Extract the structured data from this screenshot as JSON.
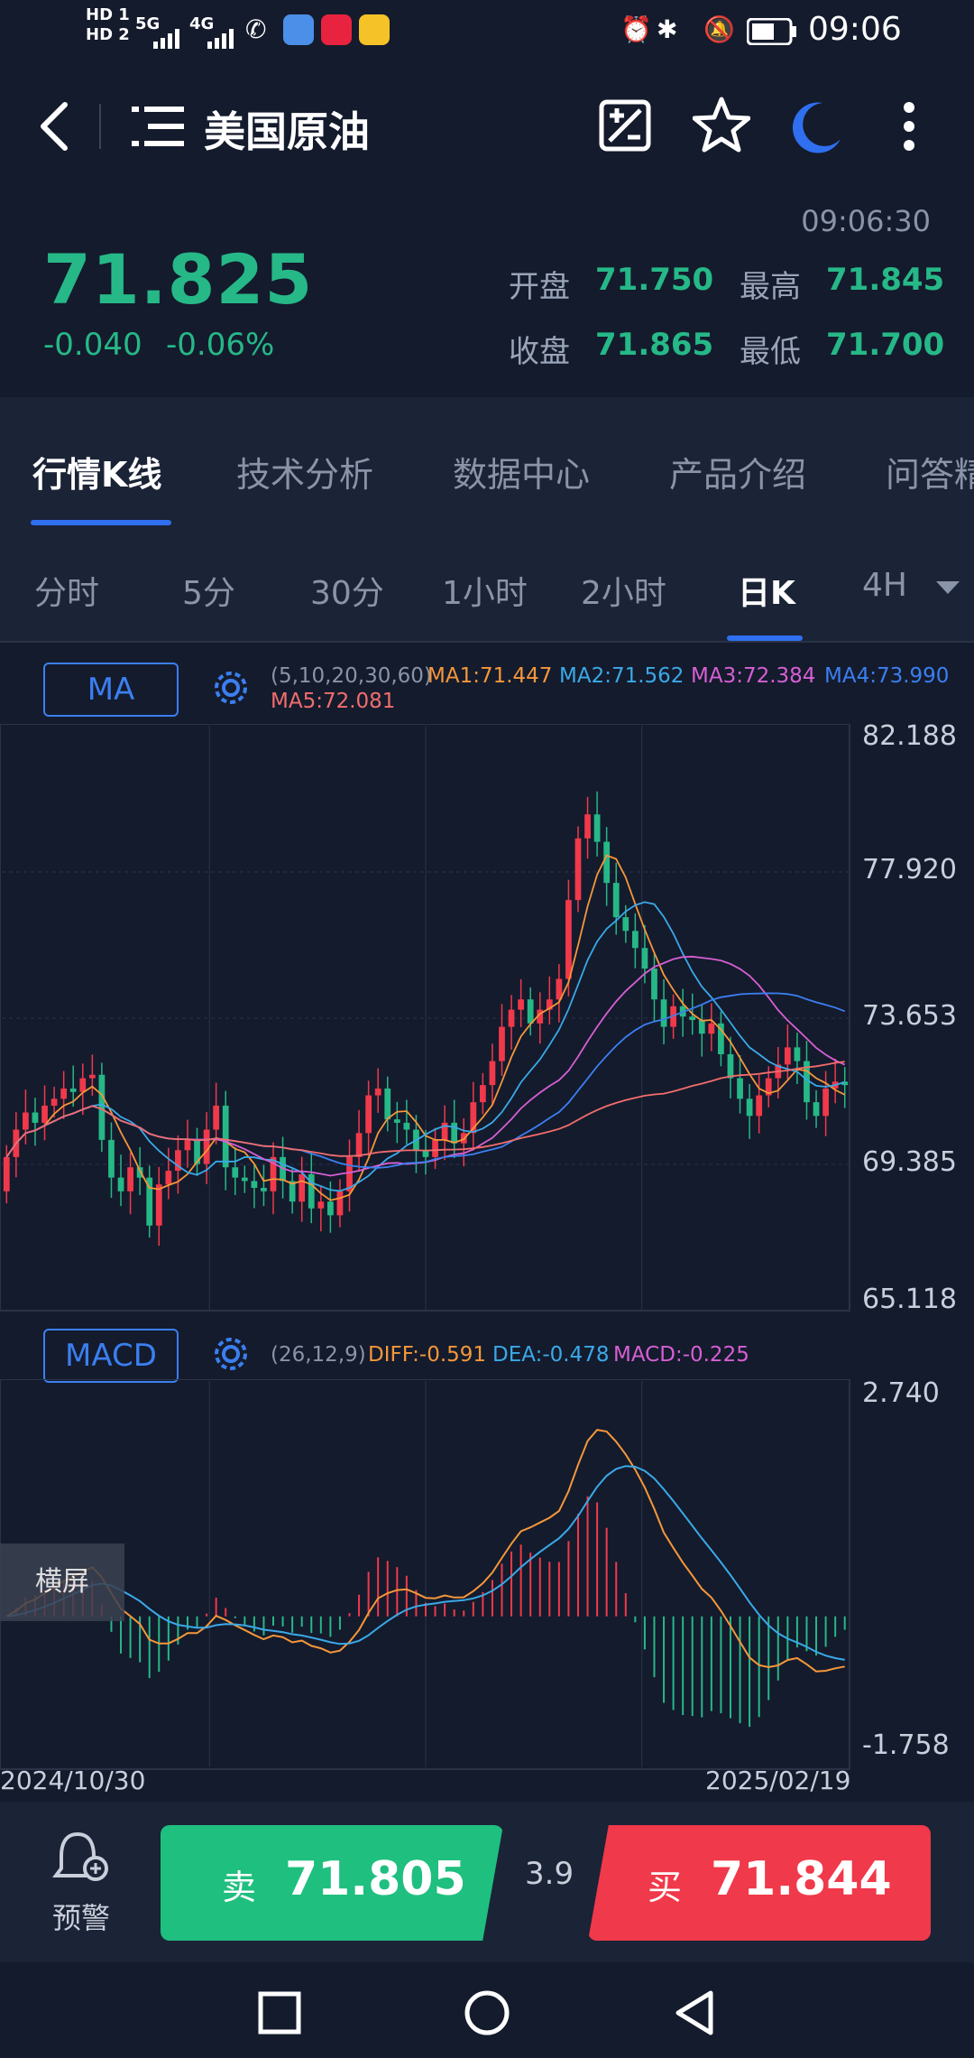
{
  "status_bar": {
    "left_icons": [
      "HD 1",
      "HD 2"
    ],
    "signal1": "5G",
    "signal2": "4G",
    "time": "09:06"
  },
  "header": {
    "title": "美国原油",
    "icons": [
      "back-icon",
      "menu-list-icon",
      "edit-chart-icon",
      "star-icon",
      "moon-icon",
      "more-vertical-icon"
    ]
  },
  "quote": {
    "timestamp": "09:06:30",
    "price": "71.825",
    "change": "-0.040",
    "change_pct": "-0.06%",
    "open_label": "开盘",
    "open": "71.750",
    "high_label": "最高",
    "high": "71.845",
    "close_label": "收盘",
    "close": "71.865",
    "low_label": "最低",
    "low": "71.700",
    "color_up": "#f0394a",
    "color_down": "#26b887"
  },
  "tabs": [
    "行情K线",
    "技术分析",
    "数据中心",
    "产品介绍",
    "问答精"
  ],
  "periods": [
    "分时",
    "5分",
    "30分",
    "1小时",
    "2小时",
    "日K",
    "4H"
  ],
  "ma_panel": {
    "button": "MA",
    "params": "(5,10,20,30,60)",
    "ma1": "MA1:71.447",
    "ma2": "MA2:71.562",
    "ma3": "MA3:72.384",
    "ma4": "MA4:73.990",
    "ma5": "MA5:72.081",
    "y_labels": [
      "82.188",
      "77.920",
      "73.653",
      "69.385",
      "65.118"
    ]
  },
  "macd_panel": {
    "button": "MACD",
    "params": "(26,12,9)",
    "diff": "DIFF:-0.591",
    "dea": "DEA:-0.478",
    "macd": "MACD:-0.225",
    "y_top": "2.740",
    "y_bottom": "-1.758"
  },
  "dates": {
    "start": "2024/10/30",
    "end": "2025/02/19"
  },
  "landscape_label": "横屏",
  "bottom": {
    "alert_label": "预警",
    "sell_label": "卖",
    "sell_price": "71.805",
    "spread": "3.9",
    "buy_label": "买",
    "buy_price": "71.844"
  },
  "chart_data": {
    "type": "candlestick",
    "ylim": [
      65.118,
      82.188
    ],
    "closes": [
      69.6,
      70.4,
      70.9,
      70.6,
      71.1,
      71.3,
      71.6,
      71.5,
      71.9,
      72.0,
      70.1,
      69.0,
      68.6,
      69.3,
      69.0,
      67.6,
      68.8,
      69.2,
      69.8,
      70.1,
      69.4,
      70.4,
      71.1,
      69.3,
      69.0,
      68.9,
      68.7,
      68.6,
      69.6,
      68.9,
      68.3,
      69.1,
      68.1,
      68.3,
      67.9,
      68.6,
      69.6,
      70.3,
      71.4,
      71.6,
      70.7,
      70.6,
      70.4,
      69.8,
      69.6,
      70.1,
      70.6,
      70.0,
      70.3,
      71.2,
      71.7,
      72.4,
      73.4,
      73.9,
      74.2,
      73.5,
      73.9,
      74.2,
      74.8,
      77.1,
      78.9,
      79.6,
      78.8,
      77.6,
      76.6,
      76.2,
      75.7,
      75.1,
      74.2,
      73.4,
      74.0,
      73.7,
      73.6,
      73.2,
      73.5,
      72.6,
      71.9,
      71.3,
      70.8,
      71.4,
      71.9,
      72.3,
      72.8,
      72.4,
      71.2,
      70.8,
      71.6,
      71.8,
      71.7
    ],
    "opens": [
      68.6,
      69.6,
      70.4,
      70.9,
      70.6,
      71.1,
      71.3,
      71.6,
      71.5,
      71.9,
      72.0,
      70.1,
      69.0,
      68.6,
      69.3,
      69.0,
      67.6,
      68.8,
      69.2,
      69.8,
      70.1,
      69.4,
      70.4,
      71.1,
      69.3,
      69.0,
      68.9,
      68.7,
      68.6,
      69.6,
      68.9,
      68.3,
      69.1,
      68.1,
      68.3,
      67.9,
      68.6,
      69.6,
      70.3,
      71.4,
      71.6,
      70.7,
      70.6,
      70.4,
      69.8,
      69.6,
      70.1,
      70.6,
      70.0,
      70.3,
      71.2,
      71.7,
      72.4,
      73.4,
      73.9,
      74.2,
      73.5,
      73.9,
      74.2,
      74.8,
      77.1,
      78.9,
      79.6,
      78.8,
      77.6,
      76.6,
      76.2,
      75.7,
      75.1,
      74.2,
      73.4,
      74.0,
      73.7,
      73.6,
      73.2,
      73.5,
      72.6,
      71.9,
      71.3,
      70.8,
      71.4,
      71.9,
      72.3,
      72.8,
      72.4,
      71.2,
      70.8,
      71.6,
      71.8
    ],
    "ma_series": [
      {
        "name": "MA1",
        "color": "#f5973a"
      },
      {
        "name": "MA2",
        "color": "#3aa9e8"
      },
      {
        "name": "MA3",
        "color": "#d65fd3"
      },
      {
        "name": "MA4",
        "color": "#3b7ff0"
      },
      {
        "name": "MA5",
        "color": "#f26d6d"
      }
    ],
    "macd_ylim": [
      -1.758,
      2.74
    ]
  }
}
